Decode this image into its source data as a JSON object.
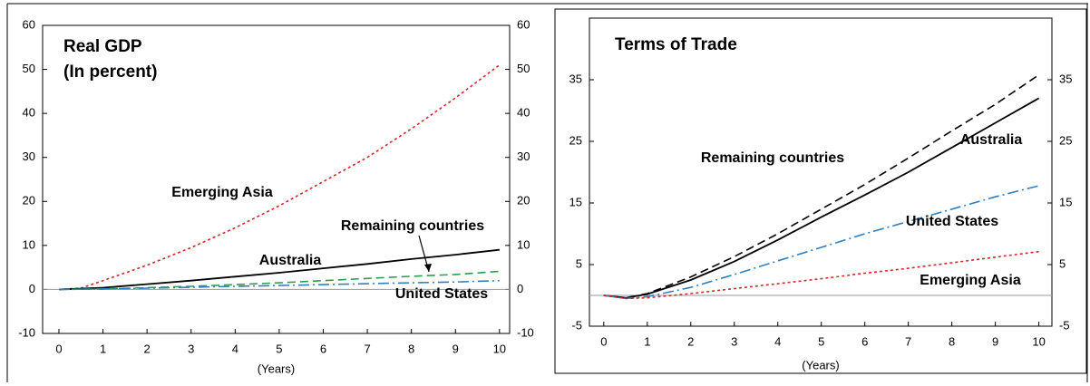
{
  "chart_data": [
    {
      "type": "line",
      "title": "Real GDP",
      "subtitle": "(In percent)",
      "x_label": "(Years)",
      "x": [
        0,
        0.5,
        1,
        2,
        3,
        4,
        5,
        6,
        7,
        8,
        9,
        10
      ],
      "xlim": [
        -0.37,
        10.23
      ],
      "xticks": [
        0,
        1,
        2,
        3,
        4,
        5,
        6,
        7,
        8,
        9,
        10
      ],
      "ylim": [
        -10,
        60
      ],
      "yticks": [
        -10,
        0,
        10,
        20,
        30,
        40,
        50,
        60
      ],
      "series": [
        {
          "name": "Emerging Asia",
          "color": "#d62728",
          "dash": "dotted",
          "values": [
            0,
            0.3,
            2,
            5.5,
            9.5,
            14,
            19,
            24.5,
            30,
            36.5,
            43.5,
            51
          ]
        },
        {
          "name": "Australia",
          "color": "#000000",
          "dash": "solid",
          "values": [
            0,
            0.2,
            0.4,
            1.2,
            2.0,
            2.9,
            3.8,
            4.8,
            5.8,
            6.9,
            7.9,
            9.0
          ]
        },
        {
          "name": "Remaining countries",
          "color": "#2e9e4f",
          "dash": "dashed",
          "values": [
            0,
            0.05,
            0.1,
            0.4,
            0.7,
            1.1,
            1.5,
            2.0,
            2.5,
            3.0,
            3.4,
            4.1
          ]
        },
        {
          "name": "United States",
          "color": "#2f7fc1",
          "dash": "dashdot",
          "values": [
            0,
            0.05,
            0.1,
            0.3,
            0.5,
            0.7,
            0.9,
            1.1,
            1.3,
            1.5,
            1.7,
            2.0
          ]
        }
      ]
    },
    {
      "type": "line",
      "title": "Terms of Trade",
      "x_label": "(Years)",
      "x": [
        0,
        0.5,
        1,
        2,
        3,
        4,
        5,
        6,
        7,
        8,
        9,
        10
      ],
      "xlim": [
        -0.33,
        10.3
      ],
      "xticks": [
        0,
        1,
        2,
        3,
        4,
        5,
        6,
        7,
        8,
        9,
        10
      ],
      "ylim": [
        -5,
        45
      ],
      "yticks": [
        -5,
        5,
        15,
        25,
        35
      ],
      "series": [
        {
          "name": "Remaining countries",
          "color": "#000000",
          "dash": "dashed",
          "values": [
            0,
            -0.4,
            0.3,
            3,
            6.3,
            10,
            14,
            18,
            22.3,
            26.7,
            31,
            35.8
          ]
        },
        {
          "name": "Australia",
          "color": "#000000",
          "dash": "solid",
          "values": [
            0,
            -0.4,
            0.2,
            2.5,
            5.5,
            9,
            12.7,
            16.3,
            20,
            24,
            28,
            32
          ]
        },
        {
          "name": "United States",
          "color": "#2f7fc1",
          "dash": "dashdot",
          "values": [
            0,
            -0.5,
            -0.2,
            1.3,
            3.4,
            5.6,
            7.8,
            10,
            12,
            14,
            16,
            17.8
          ]
        },
        {
          "name": "Emerging Asia",
          "color": "#d62728",
          "dash": "dotted",
          "values": [
            0,
            -0.5,
            -0.4,
            0.3,
            1.1,
            1.9,
            2.7,
            3.6,
            4.4,
            5.3,
            6.2,
            7.1
          ]
        }
      ]
    }
  ]
}
